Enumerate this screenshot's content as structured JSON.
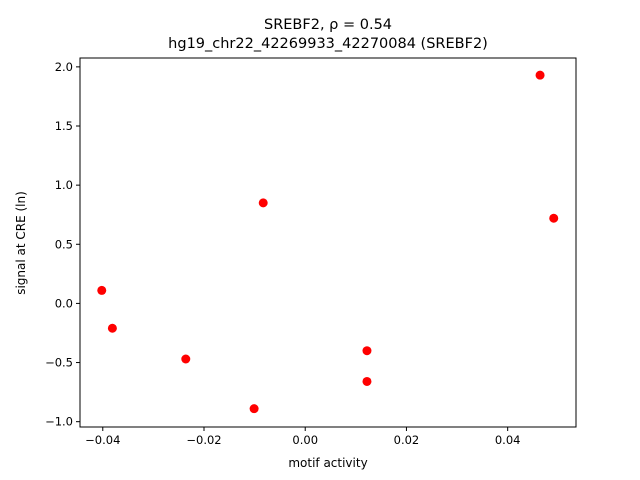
{
  "chart_data": {
    "type": "scatter",
    "title": "SREBF2, ρ = 0.54",
    "subtitle": "hg19_chr22_42269933_42270084 (SREBF2)",
    "xlabel": "motif activity",
    "ylabel": "signal at CRE (ln)",
    "xlim": [
      -0.0445,
      0.0535
    ],
    "ylim": [
      -1.045,
      2.075
    ],
    "x_ticks": [
      -0.04,
      -0.02,
      0.0,
      0.02,
      0.04
    ],
    "x_tick_labels": [
      "−0.04",
      "−0.02",
      "0.00",
      "0.02",
      "0.04"
    ],
    "y_ticks": [
      -1.0,
      -0.5,
      0.0,
      0.5,
      1.0,
      1.5,
      2.0
    ],
    "y_tick_labels": [
      "−1.0",
      "−0.5",
      "0.0",
      "0.5",
      "1.0",
      "1.5",
      "2.0"
    ],
    "grid": false,
    "marker_color": "#ff0000",
    "points": [
      {
        "x": -0.0402,
        "y": 0.11
      },
      {
        "x": -0.0381,
        "y": -0.21
      },
      {
        "x": -0.0236,
        "y": -0.47
      },
      {
        "x": -0.0101,
        "y": -0.89
      },
      {
        "x": -0.0083,
        "y": 0.85
      },
      {
        "x": 0.0122,
        "y": -0.4
      },
      {
        "x": 0.0122,
        "y": -0.66
      },
      {
        "x": 0.0464,
        "y": 1.93
      },
      {
        "x": 0.0491,
        "y": 0.72
      }
    ]
  }
}
